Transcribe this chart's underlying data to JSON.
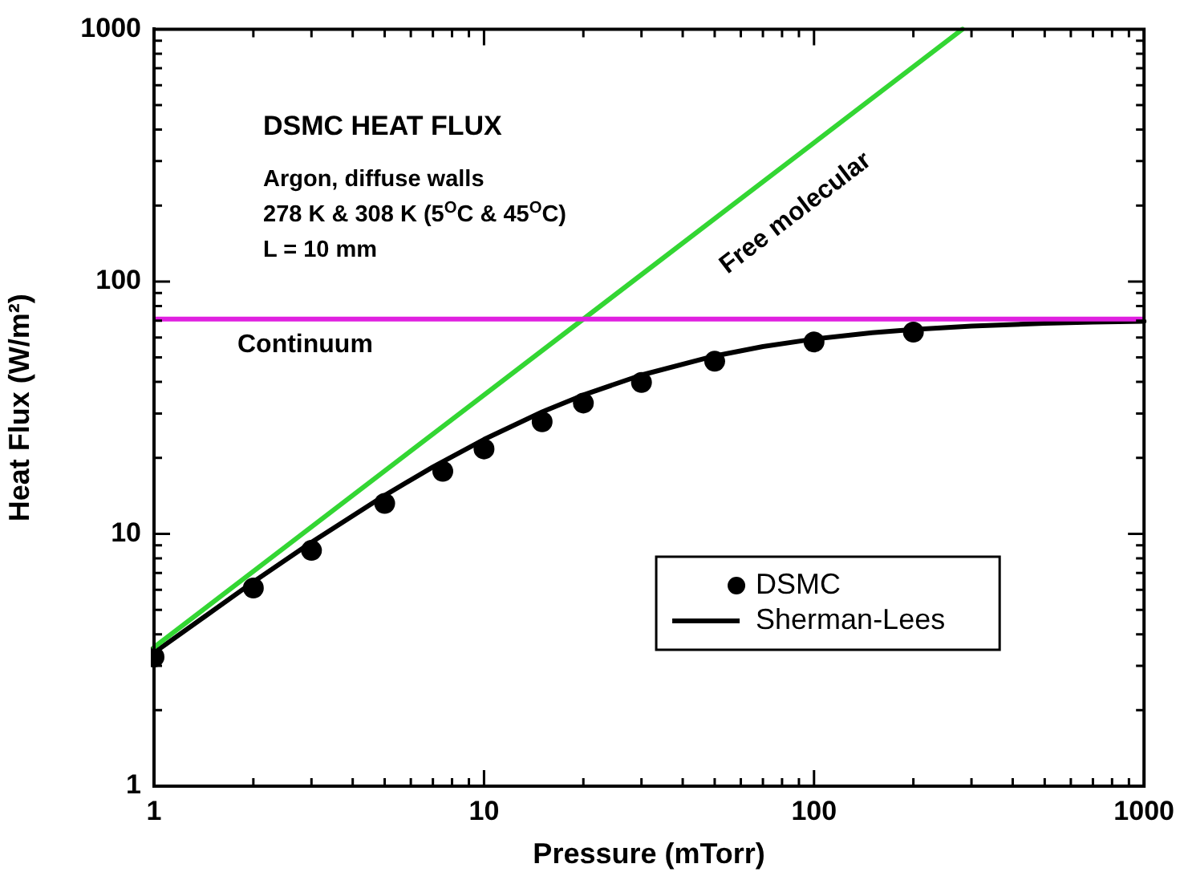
{
  "chart_data": {
    "type": "line",
    "xlabel": "Pressure (mTorr)",
    "ylabel": "Heat Flux (W/m²)",
    "log": "xy",
    "grid": false,
    "legend": "bottom right",
    "xlim": [
      1,
      1000
    ],
    "ylim": [
      1,
      1000
    ],
    "xticks": [
      1,
      {
        "value": 2,
        "label": null
      },
      {
        "value": 3,
        "label": null
      },
      {
        "value": 4,
        "label": null
      },
      {
        "value": 5,
        "label": null
      },
      {
        "value": 6,
        "label": null
      },
      {
        "value": 7,
        "label": null
      },
      {
        "value": 8,
        "label": null
      },
      {
        "value": 9,
        "label": null
      },
      10,
      {
        "value": 20,
        "label": null
      },
      {
        "value": 30,
        "label": null
      },
      {
        "value": 40,
        "label": null
      },
      {
        "value": 50,
        "label": null
      },
      {
        "value": 60,
        "label": null
      },
      {
        "value": 70,
        "label": null
      },
      {
        "value": 80,
        "label": null
      },
      {
        "value": 90,
        "label": null
      },
      100,
      {
        "value": 200,
        "label": null
      },
      {
        "value": 300,
        "label": null
      },
      {
        "value": 400,
        "label": null
      },
      {
        "value": 500,
        "label": null
      },
      {
        "value": 600,
        "label": null
      },
      {
        "value": 700,
        "label": null
      },
      {
        "value": 800,
        "label": null
      },
      {
        "value": 900,
        "label": null
      },
      1000
    ],
    "yticks": [
      1,
      {
        "value": 2,
        "label": null
      },
      {
        "value": 3,
        "label": null
      },
      {
        "value": 4,
        "label": null
      },
      {
        "value": 5,
        "label": null
      },
      {
        "value": 6,
        "label": null
      },
      {
        "value": 7,
        "label": null
      },
      {
        "value": 8,
        "label": null
      },
      {
        "value": 9,
        "label": null
      },
      10,
      {
        "value": 20,
        "label": null
      },
      {
        "value": 30,
        "label": null
      },
      {
        "value": 40,
        "label": null
      },
      {
        "value": 50,
        "label": null
      },
      {
        "value": 60,
        "label": null
      },
      {
        "value": 70,
        "label": null
      },
      {
        "value": 80,
        "label": null
      },
      {
        "value": 90,
        "label": null
      },
      100,
      {
        "value": 200,
        "label": null
      },
      {
        "value": 300,
        "label": null
      },
      {
        "value": 400,
        "label": null
      },
      {
        "value": 500,
        "label": null
      },
      {
        "value": 600,
        "label": null
      },
      {
        "value": 700,
        "label": null
      },
      {
        "value": 800,
        "label": null
      },
      {
        "value": 900,
        "label": null
      },
      1000
    ],
    "series": [
      {
        "name": "Free molecular",
        "color": "#33d633",
        "x": [
          1,
          281.7
        ],
        "values": [
          3.55,
          1000
        ]
      },
      {
        "name": "Sherman-Lees",
        "color": "#000000",
        "x": [
          1,
          2,
          3,
          5,
          7,
          10,
          15,
          20,
          30,
          50,
          70,
          100,
          150,
          200,
          300,
          500,
          700,
          1000
        ],
        "values": [
          3.38,
          6.45,
          9.26,
          14.2,
          18.41,
          23.67,
          30.43,
          35.5,
          42.6,
          50.71,
          55.22,
          59.17,
          62.65,
          64.55,
          66.56,
          68.27,
          69.04,
          69.61
        ]
      },
      {
        "name": "DSMC",
        "type": "scatter",
        "marker": "circle",
        "color": "#000000",
        "x": [
          1,
          2,
          3,
          5,
          7.5,
          10,
          15,
          20,
          30,
          50,
          100,
          200
        ],
        "values": [
          3.25,
          6.1,
          8.6,
          13.2,
          17.7,
          21.7,
          27.8,
          33,
          39.8,
          48.3,
          57.6,
          63
        ]
      }
    ],
    "ref_lines": [
      {
        "axis": "y",
        "value": 71,
        "label": "Continuum",
        "color": "#e020e0"
      }
    ],
    "annotations": [
      "DSMC HEAT FLUX",
      "Argon, diffuse walls",
      "278 K & 308 K (5$^{O}$C & 45$^{O}$C)",
      "L = 10 mm"
    ]
  }
}
